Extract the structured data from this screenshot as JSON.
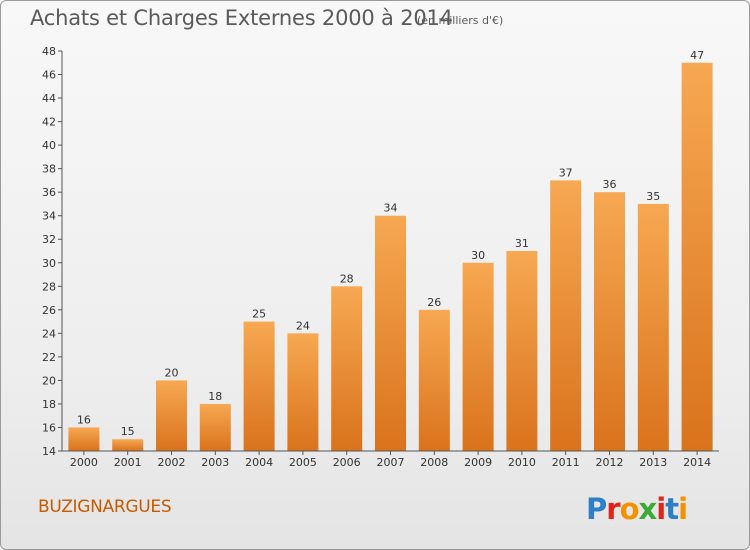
{
  "header": {
    "title": "Achats et Charges Externes 2000 à 2014",
    "subtitle": "(en milliers d'€)"
  },
  "footer": {
    "commune": "BUZIGNARGUES",
    "logo_text": "Proxiti"
  },
  "colors": {
    "bar_top": "#f7a852",
    "bar_bottom": "#d9731c",
    "commune_text": "#c85a00",
    "logo_p": "#2e7fc8",
    "logo_r": "#e2231a",
    "logo_o": "#f39200",
    "logo_x": "#3aa935",
    "logo_i1": "#e2231a",
    "logo_t": "#2e7fc8",
    "logo_i2": "#f39200"
  },
  "chart_data": {
    "type": "bar",
    "title": "Achats et Charges Externes 2000 à 2014",
    "subtitle": "(en milliers d'€)",
    "xlabel": "",
    "ylabel": "",
    "categories": [
      "2000",
      "2001",
      "2002",
      "2003",
      "2004",
      "2005",
      "2006",
      "2007",
      "2008",
      "2009",
      "2010",
      "2011",
      "2012",
      "2013",
      "2014"
    ],
    "values": [
      16,
      15,
      20,
      18,
      25,
      24,
      28,
      34,
      26,
      30,
      31,
      37,
      36,
      35,
      47
    ],
    "data_labels": [
      "16",
      "15",
      "20",
      "18",
      "25",
      "24",
      "28",
      "34",
      "26",
      "30",
      "31",
      "37",
      "36",
      "35",
      "47"
    ],
    "ylim": [
      14,
      48
    ],
    "yticks": [
      14,
      16,
      18,
      20,
      22,
      24,
      26,
      28,
      30,
      32,
      34,
      36,
      38,
      40,
      42,
      44,
      46,
      48
    ],
    "ytick_labels": [
      "14",
      "16",
      "18",
      "20",
      "22",
      "24",
      "26",
      "28",
      "30",
      "32",
      "34",
      "36",
      "38",
      "40",
      "42",
      "44",
      "46",
      "48"
    ],
    "grid": false,
    "legend": "none"
  }
}
